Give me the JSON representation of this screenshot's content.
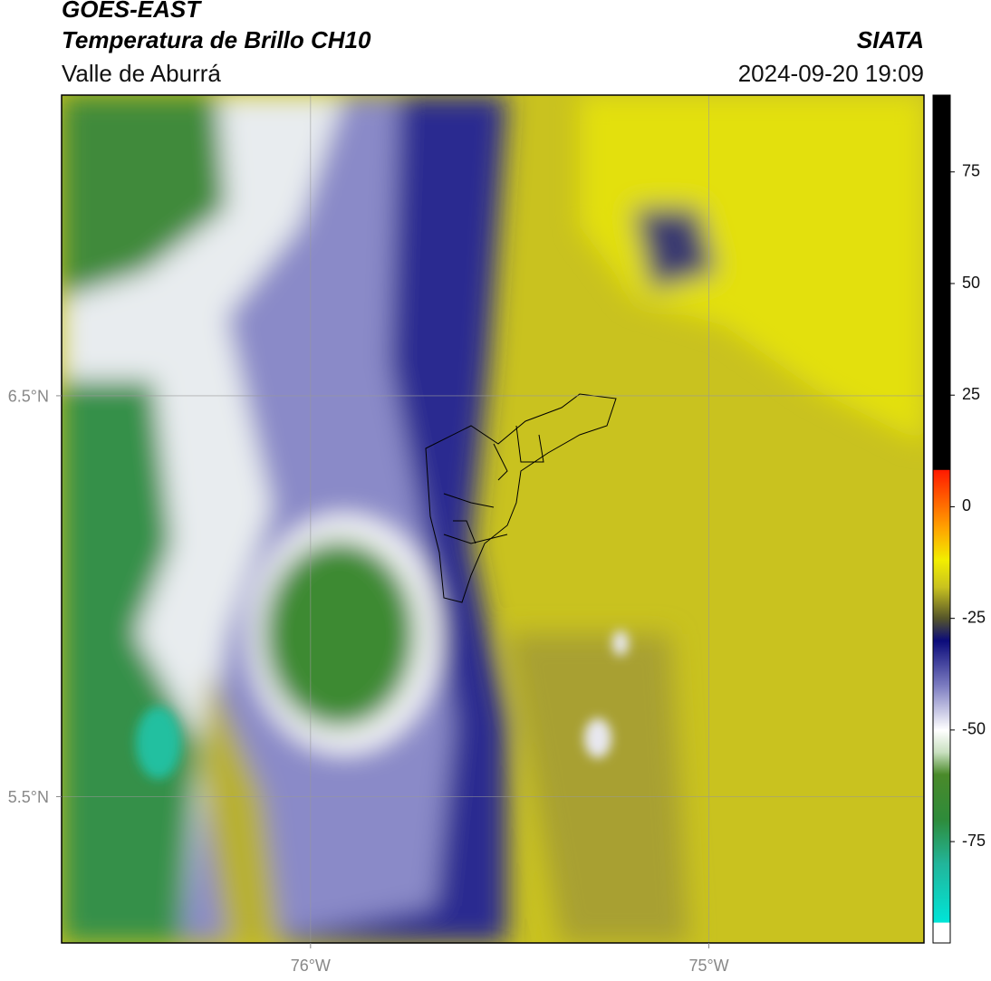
{
  "header": {
    "title": "GOES-EAST",
    "subtitle": "Temperatura de Brillo CH10",
    "region": "Valle de Aburrá",
    "source": "SIATA",
    "datetime": "2024-09-20 19:09"
  },
  "map": {
    "lonlim": [
      -76.625,
      -74.46
    ],
    "latlim": [
      5.135,
      7.25
    ],
    "lon_ticks": [
      {
        "value": -76,
        "label": "76°W"
      },
      {
        "value": -75,
        "label": "75°W"
      }
    ],
    "lat_ticks": [
      {
        "value": 6.5,
        "label": "6.5°N"
      },
      {
        "value": 5.5,
        "label": "5.5°N"
      }
    ],
    "grid": true
  },
  "colorbar": {
    "lim": [
      -97.7,
      92.2
    ],
    "ticks": [
      75,
      50,
      25,
      0,
      -25,
      -50,
      -75
    ],
    "stops": [
      {
        "value": -97.7,
        "color": "#ffffff"
      },
      {
        "value": -93.2,
        "color": "#ffffff"
      },
      {
        "value": -93.1,
        "color": "#00e5d8"
      },
      {
        "value": -80,
        "color": "#22b59a"
      },
      {
        "value": -70,
        "color": "#2e8b3a"
      },
      {
        "value": -60,
        "color": "#4a8a2a"
      },
      {
        "value": -55,
        "color": "#c9e0c0"
      },
      {
        "value": -50,
        "color": "#ffffff"
      },
      {
        "value": -40,
        "color": "#7b7bc0"
      },
      {
        "value": -30,
        "color": "#0b0b7a"
      },
      {
        "value": -25,
        "color": "#55552a"
      },
      {
        "value": -18,
        "color": "#c9c21f"
      },
      {
        "value": -12,
        "color": "#f2ee00"
      },
      {
        "value": -5,
        "color": "#ffa500"
      },
      {
        "value": 8.2,
        "color": "#ff1a00"
      },
      {
        "value": 8.3,
        "color": "#000000"
      },
      {
        "value": 92.2,
        "color": "#000000"
      }
    ]
  }
}
